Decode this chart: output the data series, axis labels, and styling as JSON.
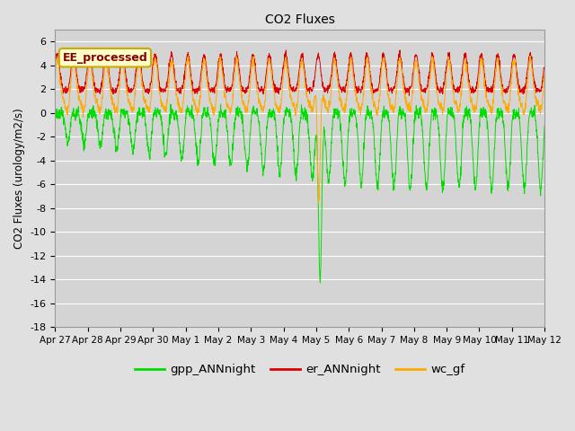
{
  "title": "CO2 Fluxes",
  "ylabel": "CO2 Fluxes (urology/m2/s)",
  "ylim": [
    -18,
    7
  ],
  "yticks": [
    -18,
    -16,
    -14,
    -12,
    -10,
    -8,
    -6,
    -4,
    -2,
    0,
    2,
    4,
    6
  ],
  "fig_bg": "#e0e0e0",
  "ax_bg": "#d4d4d4",
  "line_colors": {
    "gpp": "#00dd00",
    "er": "#dd0000",
    "wc": "#ffaa00"
  },
  "legend_labels": [
    "gpp_ANNnight",
    "er_ANNnight",
    "wc_gf"
  ],
  "annotation": "EE_processed",
  "annotation_box_color": "#ffffcc",
  "annotation_border_color": "#ccaa00",
  "total_days": 15,
  "n_points": 2000,
  "tick_days": [
    0,
    1,
    2,
    3,
    4,
    5,
    6,
    7,
    8,
    9,
    10,
    11,
    12,
    13,
    14,
    15
  ],
  "tick_labels": [
    "Apr 27",
    "Apr 28",
    "Apr 29",
    "Apr 30",
    "May 1",
    "May 2",
    "May 3",
    "May 4",
    "May 5",
    "May 6",
    "May 7",
    "May 8",
    "May 9",
    "May 10",
    "May 11",
    "May 12"
  ]
}
